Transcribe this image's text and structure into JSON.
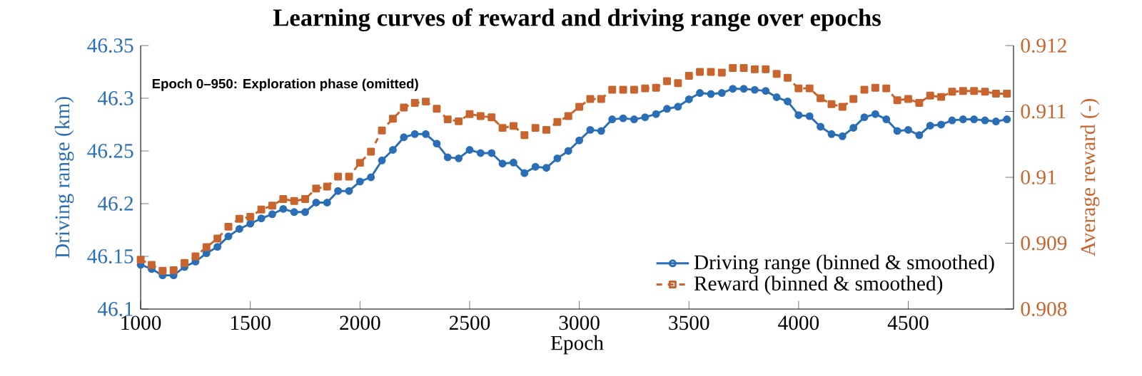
{
  "chart_data": {
    "type": "line",
    "title": "Learning curves of reward and driving range over epochs",
    "xlabel": "Epoch",
    "ylabel": "Driving range (km)",
    "y2label": "Average reward (-)",
    "annotations": [
      "Epoch 0–950: Exploration phase (omitted)"
    ],
    "x": [
      1000,
      1050,
      1100,
      1150,
      1200,
      1250,
      1300,
      1350,
      1400,
      1450,
      1500,
      1550,
      1600,
      1650,
      1700,
      1750,
      1800,
      1850,
      1900,
      1950,
      2000,
      2050,
      2100,
      2150,
      2200,
      2250,
      2300,
      2350,
      2400,
      2450,
      2500,
      2550,
      2600,
      2650,
      2700,
      2750,
      2800,
      2850,
      2900,
      2950,
      3000,
      3050,
      3100,
      3150,
      3200,
      3250,
      3300,
      3350,
      3400,
      3450,
      3500,
      3550,
      3600,
      3650,
      3700,
      3750,
      3800,
      3850,
      3900,
      3950,
      4000,
      4050,
      4100,
      4150,
      4200,
      4250,
      4300,
      4350,
      4400,
      4450,
      4500,
      4550,
      4600,
      4650,
      4700,
      4750,
      4800,
      4850,
      4900,
      4950
    ],
    "xlim": [
      1000,
      4980
    ],
    "xticks": [
      1000,
      1500,
      2000,
      2500,
      3000,
      3500,
      4000,
      4500
    ],
    "ylim": [
      46.1,
      46.35
    ],
    "yticks": [
      46.1,
      46.15,
      46.2,
      46.25,
      46.3,
      46.35
    ],
    "y2lim": [
      0.908,
      0.912
    ],
    "y2ticks": [
      0.908,
      0.909,
      0.91,
      0.911,
      0.912
    ],
    "legend": "bottom right",
    "series": [
      {
        "name": "Driving range (binned & smoothed)",
        "color": "#2a6eb5",
        "marker": "circle",
        "line_style": "solid",
        "values": [
          46.142,
          46.138,
          46.132,
          46.132,
          46.14,
          46.145,
          46.153,
          46.159,
          46.169,
          46.176,
          46.181,
          46.186,
          46.19,
          46.195,
          46.192,
          46.192,
          46.201,
          46.201,
          46.212,
          46.212,
          46.221,
          46.225,
          46.241,
          46.251,
          46.263,
          46.266,
          46.266,
          46.257,
          46.244,
          46.243,
          46.251,
          46.248,
          46.248,
          46.238,
          46.239,
          46.229,
          46.235,
          46.234,
          46.243,
          46.25,
          46.26,
          46.27,
          46.269,
          46.28,
          46.281,
          46.28,
          46.282,
          46.285,
          46.29,
          46.292,
          46.299,
          46.305,
          46.304,
          46.305,
          46.309,
          46.309,
          46.308,
          46.307,
          46.301,
          46.297,
          46.284,
          46.283,
          46.273,
          46.266,
          46.264,
          46.272,
          46.282,
          46.285,
          46.28,
          46.269,
          46.27,
          46.265,
          46.274,
          46.275,
          46.279,
          46.28,
          46.28,
          46.279,
          46.278,
          46.28
        ]
      },
      {
        "name": "Reward (binned & smoothed)",
        "color": "#c8642d",
        "marker": "square",
        "line_style": "dashed",
        "axis": "y2",
        "values": [
          0.90875,
          0.90867,
          0.90858,
          0.90859,
          0.9087,
          0.9088,
          0.90894,
          0.90907,
          0.90925,
          0.90937,
          0.9094,
          0.90951,
          0.90957,
          0.90967,
          0.90964,
          0.90967,
          0.90983,
          0.90986,
          0.91001,
          0.91001,
          0.91022,
          0.91039,
          0.91071,
          0.91089,
          0.91106,
          0.91113,
          0.91115,
          0.91104,
          0.91088,
          0.91085,
          0.91096,
          0.91093,
          0.91091,
          0.91075,
          0.91078,
          0.91064,
          0.91075,
          0.91072,
          0.91084,
          0.91093,
          0.91107,
          0.91119,
          0.91119,
          0.91133,
          0.91133,
          0.91133,
          0.91135,
          0.91136,
          0.91146,
          0.91143,
          0.91154,
          0.9116,
          0.9116,
          0.91159,
          0.91166,
          0.91166,
          0.91164,
          0.91164,
          0.91157,
          0.91151,
          0.91135,
          0.91135,
          0.9112,
          0.91111,
          0.91107,
          0.91119,
          0.91133,
          0.91136,
          0.91135,
          0.91117,
          0.91119,
          0.91113,
          0.91124,
          0.91122,
          0.9113,
          0.91131,
          0.91131,
          0.9113,
          0.91127,
          0.91127
        ]
      }
    ]
  }
}
